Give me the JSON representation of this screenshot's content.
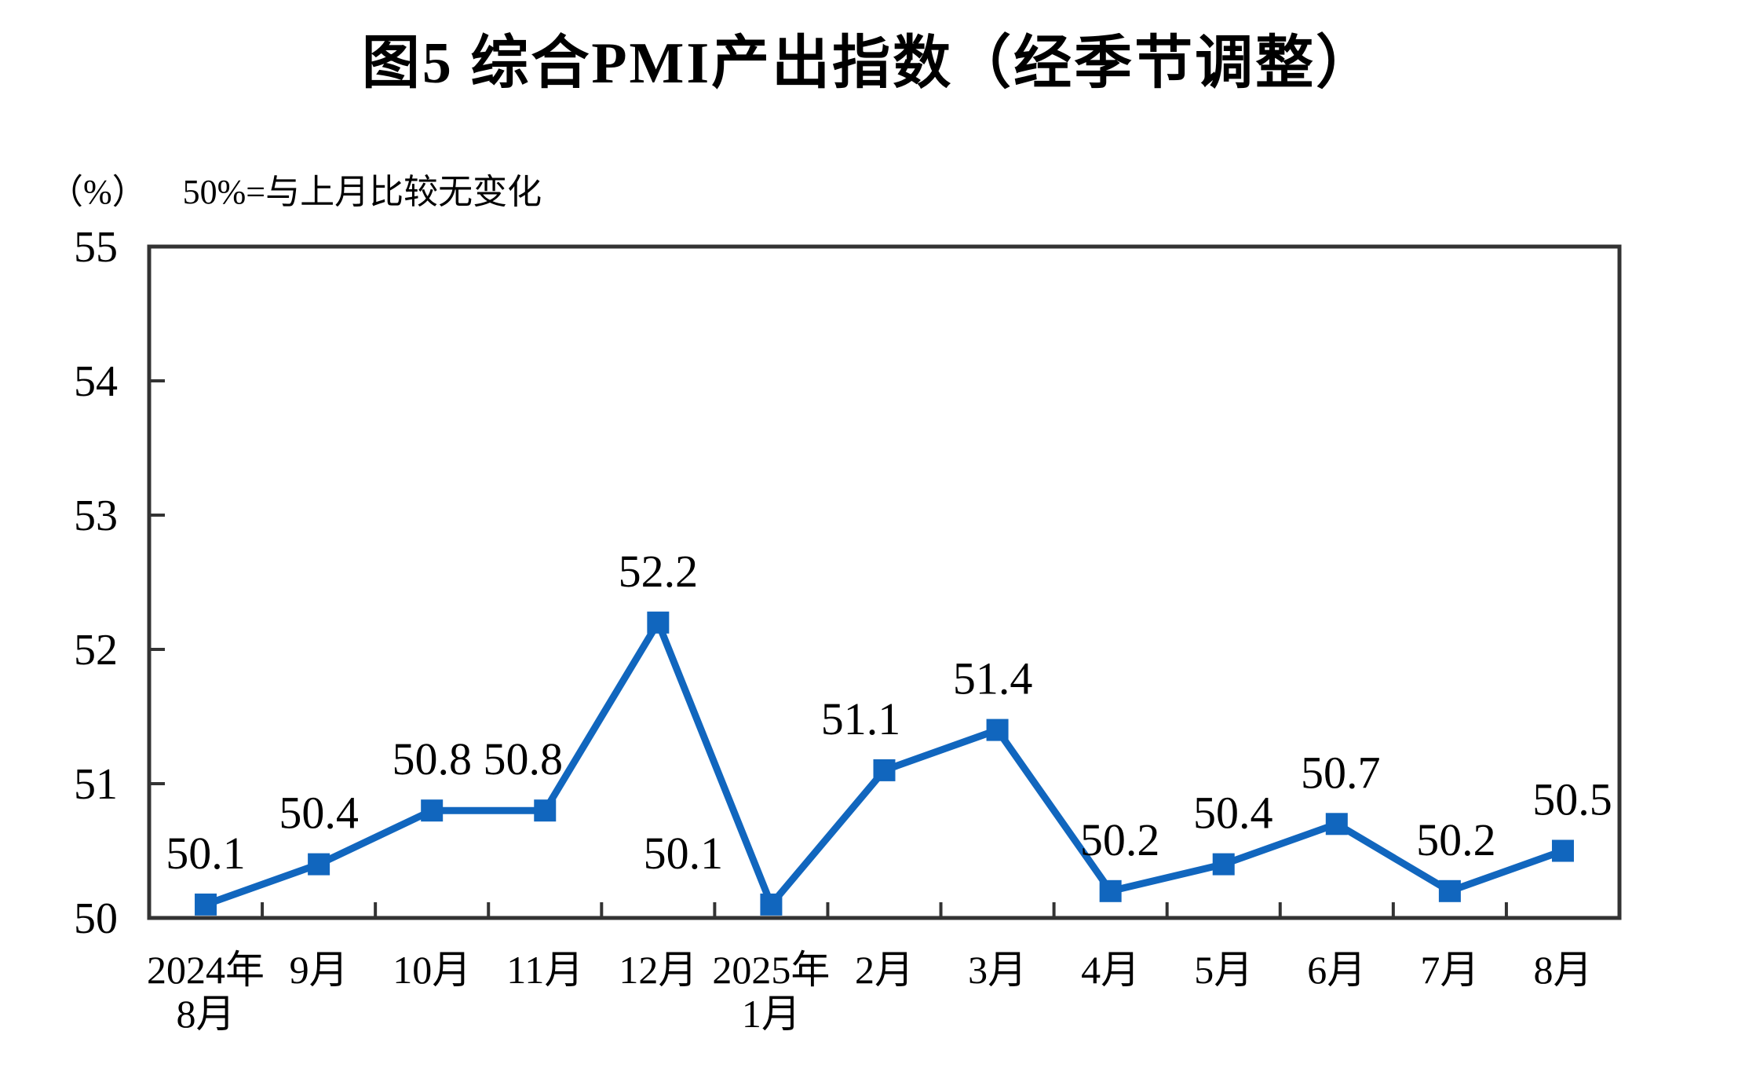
{
  "title": "图5 综合PMI产出指数（经季节调整）",
  "unit_label": "（%）",
  "note": "50%=与上月比较无变化",
  "colors": {
    "line": "#1166BE",
    "marker": "#1166BE",
    "axis": "#333333",
    "text": "#000000",
    "background": "#FFFFFF"
  },
  "chart_data": {
    "type": "line",
    "title": "图5 综合PMI产出指数（经季节调整）",
    "unit_label": "（%）",
    "annotation": "50%=与上月比较无变化",
    "categories": [
      [
        "2024年",
        "8月"
      ],
      [
        "9月"
      ],
      [
        "10月"
      ],
      [
        "11月"
      ],
      [
        "12月"
      ],
      [
        "2025年",
        "1月"
      ],
      [
        "2月"
      ],
      [
        "3月"
      ],
      [
        "4月"
      ],
      [
        "5月"
      ],
      [
        "6月"
      ],
      [
        "7月"
      ],
      [
        "8月"
      ]
    ],
    "values": [
      50.1,
      50.4,
      50.8,
      50.8,
      52.2,
      50.1,
      51.1,
      51.4,
      50.2,
      50.4,
      50.7,
      50.2,
      50.5
    ],
    "data_labels": [
      "50.1",
      "50.4",
      "50.8",
      "50.8",
      "52.2",
      "50.1",
      "51.1",
      "51.4",
      "50.2",
      "50.4",
      "50.7",
      "50.2",
      "50.5"
    ],
    "ylim": [
      50,
      55
    ],
    "yticks": [
      50,
      51,
      52,
      53,
      54,
      55
    ],
    "grid": false,
    "legend": null,
    "marker": "square",
    "label_dx": [
      0,
      0,
      0,
      -28,
      0,
      -112,
      -30,
      -6,
      12,
      12,
      5,
      8,
      12
    ],
    "label_dy": -66
  }
}
